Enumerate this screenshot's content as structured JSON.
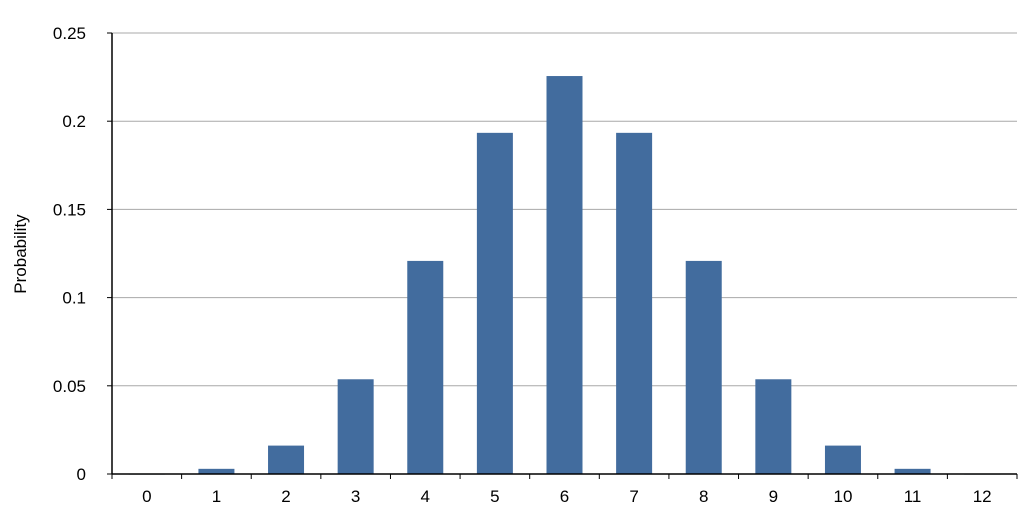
{
  "chart_data": {
    "type": "bar",
    "title": "",
    "xlabel": "",
    "ylabel": "Probability",
    "categories": [
      "0",
      "1",
      "2",
      "3",
      "4",
      "5",
      "6",
      "7",
      "8",
      "9",
      "10",
      "11",
      "12"
    ],
    "values": [
      0.000244,
      0.00293,
      0.0161,
      0.0537,
      0.1208,
      0.1934,
      0.2256,
      0.1934,
      0.1208,
      0.0537,
      0.0161,
      0.00293,
      0.000244
    ],
    "ylim": [
      0,
      0.25
    ],
    "yticks": [
      "0",
      "0.05",
      "0.1",
      "0.15",
      "0.2",
      "0.25"
    ],
    "grid": true,
    "legend": "none",
    "colors": {
      "bar": "#426C9E",
      "grid": "#A8A8A8",
      "axis": "#000000"
    }
  }
}
